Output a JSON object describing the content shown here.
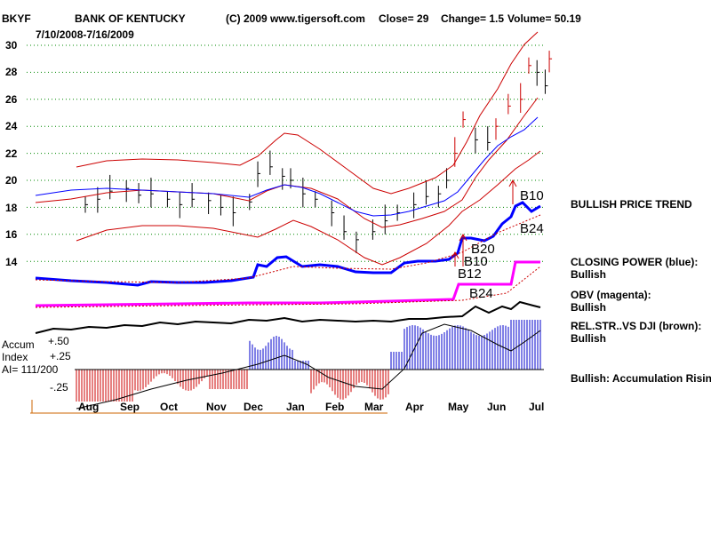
{
  "header": {
    "ticker": "BKYF",
    "company": "BANK OF KENTUCKY",
    "copyright": "(C) 2009 www.tigersoft.com",
    "close": "Close=  29",
    "change": "Change= 1.5",
    "volume": "Volume= 50.19",
    "date_range": "7/10/2008-7/16/2009"
  },
  "indicator_labels": {
    "accum": "Accum",
    "index": "Index",
    "ai": "AI= 111/200",
    "p50": "+.50",
    "p25": "+.25",
    "m25": "-.25"
  },
  "right_panel": {
    "price_trend": "BULLISH PRICE TREND",
    "closing_power": "CLOSING POWER (blue):",
    "closing_power_status": "Bullish",
    "obv": "OBV (magenta):",
    "obv_status": "Bullish",
    "relstr": "REL.STR..VS DJI (brown):",
    "relstr_status": "Bullish",
    "accum": "Bullish: Accumulation Rising"
  },
  "signals": {
    "b10_top": "B10",
    "b24_top": "B24",
    "b20": "B20",
    "b10_mid": "B10",
    "b12": "B12",
    "b24_low": "B24"
  },
  "colors": {
    "price_bars": "#000000",
    "bands": "#cc0000",
    "moving_avg_blue": "#0000ff",
    "closing_power": "#0000ff",
    "obv": "#ff00ff",
    "relstr": "#000000",
    "accum_positive": "#0000cc",
    "accum_negative": "#cc0000",
    "gridline": "#008800"
  },
  "chart_data": {
    "type": "line",
    "y_ticks": [
      30,
      28,
      26,
      24,
      22,
      20,
      18,
      16,
      14
    ],
    "ylim": [
      12,
      32
    ],
    "x_ticks": [
      "Aug",
      "Sep",
      "Oct",
      "Nov",
      "Dec",
      "Jan",
      "Feb",
      "Mar",
      "Apr",
      "May",
      "Jun",
      "Jul"
    ],
    "grid": true,
    "price_closes": [
      {
        "m": 0.0,
        "v": 18.2
      },
      {
        "m": 0.3,
        "v": 18.6
      },
      {
        "m": 0.6,
        "v": 19.2
      },
      {
        "m": 1.0,
        "v": 19.4
      },
      {
        "m": 1.3,
        "v": 18.9
      },
      {
        "m": 1.6,
        "v": 19.0
      },
      {
        "m": 2.0,
        "v": 18.6
      },
      {
        "m": 2.3,
        "v": 18.2
      },
      {
        "m": 2.6,
        "v": 18.6
      },
      {
        "m": 3.0,
        "v": 18.5
      },
      {
        "m": 3.3,
        "v": 18.0
      },
      {
        "m": 3.6,
        "v": 17.6
      },
      {
        "m": 4.0,
        "v": 18.4
      },
      {
        "m": 4.2,
        "v": 20.5
      },
      {
        "m": 4.5,
        "v": 21.0
      },
      {
        "m": 4.8,
        "v": 20.3
      },
      {
        "m": 5.0,
        "v": 20.0
      },
      {
        "m": 5.3,
        "v": 19.0
      },
      {
        "m": 5.6,
        "v": 18.6
      },
      {
        "m": 6.0,
        "v": 17.6
      },
      {
        "m": 6.3,
        "v": 16.2
      },
      {
        "m": 6.6,
        "v": 15.6
      },
      {
        "m": 7.0,
        "v": 16.2
      },
      {
        "m": 7.3,
        "v": 17.0
      },
      {
        "m": 7.6,
        "v": 17.6
      },
      {
        "m": 8.0,
        "v": 18.2
      },
      {
        "m": 8.3,
        "v": 18.8
      },
      {
        "m": 8.6,
        "v": 19.0
      },
      {
        "m": 8.8,
        "v": 20.0
      },
      {
        "m": 9.0,
        "v": 22.0
      },
      {
        "m": 9.2,
        "v": 24.5
      },
      {
        "m": 9.5,
        "v": 23.0
      },
      {
        "m": 9.8,
        "v": 22.8
      },
      {
        "m": 10.0,
        "v": 24.0
      },
      {
        "m": 10.3,
        "v": 25.5
      },
      {
        "m": 10.6,
        "v": 26.0
      },
      {
        "m": 10.8,
        "v": 28.5
      },
      {
        "m": 11.0,
        "v": 28.0
      },
      {
        "m": 11.2,
        "v": 27.0
      },
      {
        "m": 11.3,
        "v": 29.0
      }
    ]
  }
}
